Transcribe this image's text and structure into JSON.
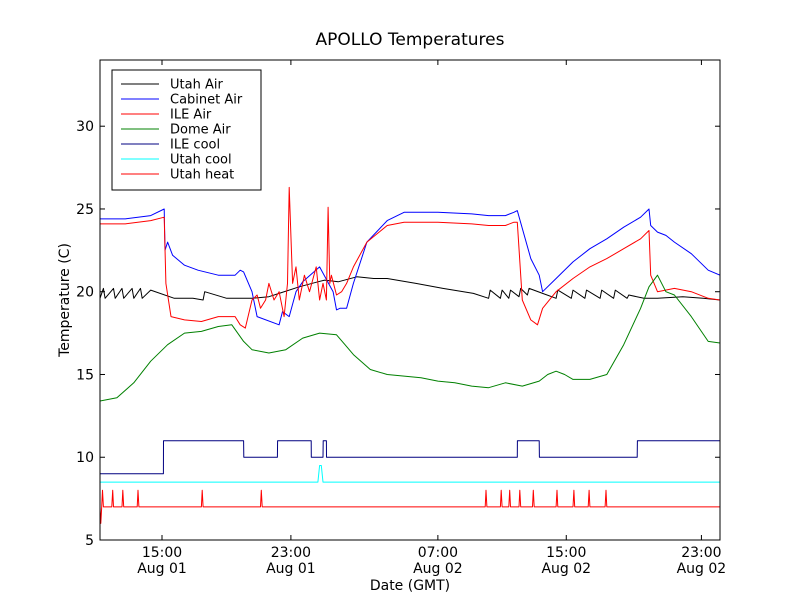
{
  "chart_data": {
    "type": "line",
    "title": "APOLLO Temperatures",
    "xlabel": "Date (GMT)",
    "ylabel": "Temperature (C)",
    "x_unit": "hours since Aug 01 11:00 GMT",
    "xlim": [
      0,
      36.7
    ],
    "ylim": [
      5,
      34
    ],
    "grid": false,
    "legend_position": "top-left",
    "xticks": [
      {
        "x": 3.67,
        "line1": "15:00",
        "line2": "Aug 01"
      },
      {
        "x": 11.3,
        "line1": "23:00",
        "line2": "Aug 01"
      },
      {
        "x": 20.0,
        "line1": "07:00",
        "line2": "Aug 02"
      },
      {
        "x": 27.6,
        "line1": "15:00",
        "line2": "Aug 02"
      },
      {
        "x": 35.6,
        "line1": "23:00",
        "line2": "Aug 02"
      }
    ],
    "yticks": [
      5,
      10,
      15,
      20,
      25,
      30
    ],
    "series": [
      {
        "name": "Utah Air",
        "color": "#000000",
        "x": [
          0,
          0.2,
          0.3,
          0.8,
          0.9,
          1.3,
          1.4,
          1.9,
          2.0,
          2.4,
          2.5,
          3.0,
          4.4,
          5.5,
          6.1,
          6.2,
          7.5,
          9.0,
          10.0,
          10.6,
          11.8,
          12.9,
          13.3,
          14.1,
          15.2,
          16.2,
          17.0,
          18.7,
          20.3,
          22.1,
          23.0,
          23.1,
          23.7,
          23.8,
          24.2,
          24.3,
          24.8,
          24.9,
          25.3,
          25.4,
          26.2,
          27.0,
          27.1,
          27.9,
          28.0,
          28.7,
          28.8,
          29.6,
          29.7,
          30.4,
          30.5,
          31.2,
          31.3,
          32.2,
          33.0,
          34.5,
          35.7,
          36.7
        ],
        "y": [
          19.6,
          20.2,
          19.6,
          20.2,
          19.6,
          20.2,
          19.6,
          20.2,
          19.6,
          20.2,
          19.6,
          20.1,
          19.6,
          19.6,
          19.5,
          20.0,
          19.6,
          19.6,
          19.7,
          19.9,
          20.3,
          20.6,
          20.7,
          20.6,
          20.9,
          20.8,
          20.8,
          20.5,
          20.2,
          19.9,
          19.6,
          20.1,
          19.6,
          20.1,
          19.6,
          20.1,
          19.7,
          20.2,
          19.8,
          20.2,
          19.9,
          19.6,
          20.1,
          19.6,
          20.1,
          19.6,
          20.1,
          19.6,
          20.1,
          19.6,
          20.1,
          19.6,
          19.8,
          19.6,
          19.6,
          19.7,
          19.6,
          19.5
        ]
      },
      {
        "name": "Cabinet Air",
        "color": "#0000ff",
        "x": [
          0,
          1.5,
          3.0,
          3.8,
          3.85,
          4.0,
          4.3,
          5.0,
          5.8,
          7.0,
          8.0,
          8.3,
          8.5,
          9.0,
          9.3,
          10.6,
          10.8,
          11.2,
          11.6,
          12.0,
          13.0,
          13.8,
          14.0,
          14.2,
          14.6,
          15.0,
          15.8,
          17.0,
          18.0,
          20.0,
          22.0,
          23.0,
          24.0,
          24.5,
          24.7,
          25.5,
          26.0,
          26.2,
          27.0,
          28.0,
          29.0,
          30.0,
          31.0,
          32.0,
          32.5,
          32.6,
          33.0,
          33.5,
          34.0,
          35.0,
          36.0,
          36.7
        ],
        "y": [
          24.4,
          24.4,
          24.6,
          25.0,
          22.5,
          23.0,
          22.2,
          21.6,
          21.3,
          21.0,
          21.0,
          21.3,
          21.2,
          20.0,
          18.5,
          18.0,
          18.8,
          18.5,
          20.0,
          20.6,
          21.5,
          20.0,
          18.9,
          19.0,
          19.0,
          20.5,
          23.0,
          24.3,
          24.8,
          24.8,
          24.7,
          24.6,
          24.6,
          24.8,
          24.9,
          22.0,
          21.0,
          20.0,
          20.8,
          21.8,
          22.6,
          23.2,
          23.9,
          24.5,
          25.0,
          24.0,
          23.6,
          23.4,
          23.0,
          22.3,
          21.3,
          21.0
        ]
      },
      {
        "name": "ILE Air",
        "color": "#ff0000",
        "x": [
          0,
          1.5,
          3.0,
          3.8,
          3.9,
          4.2,
          5.0,
          6.0,
          7.0,
          8.0,
          8.3,
          8.6,
          9.0,
          9.3,
          9.5,
          9.8,
          10.0,
          10.3,
          10.6,
          10.9,
          11.1,
          11.2,
          11.4,
          11.6,
          11.8,
          12.1,
          12.4,
          12.8,
          13.0,
          13.2,
          13.4,
          13.5,
          13.6,
          13.7,
          14.0,
          14.3,
          14.6,
          15.0,
          15.8,
          17.0,
          18.0,
          20.0,
          22.0,
          23.0,
          24.0,
          24.5,
          24.7,
          25.0,
          25.5,
          25.9,
          26.2,
          27.0,
          28.0,
          29.0,
          30.0,
          31.0,
          32.0,
          32.5,
          32.6,
          33.0,
          34.0,
          35.0,
          36.0,
          36.7
        ],
        "y": [
          24.1,
          24.1,
          24.3,
          24.5,
          20.5,
          18.5,
          18.3,
          18.2,
          18.5,
          18.5,
          18.0,
          17.8,
          19.5,
          19.8,
          19.0,
          19.5,
          20.5,
          19.5,
          20.0,
          18.5,
          20.5,
          26.3,
          20.5,
          21.5,
          19.5,
          21.0,
          20.0,
          21.5,
          19.5,
          20.5,
          19.5,
          25.1,
          20.5,
          21.0,
          19.8,
          20.0,
          20.5,
          21.5,
          23.0,
          24.0,
          24.2,
          24.2,
          24.1,
          24.0,
          24.0,
          24.2,
          24.2,
          19.5,
          18.3,
          18.0,
          19.0,
          20.0,
          20.8,
          21.5,
          22.0,
          22.6,
          23.2,
          23.7,
          21.0,
          20.0,
          20.2,
          20.0,
          19.6,
          19.5
        ]
      },
      {
        "name": "Dome Air",
        "color": "#008000",
        "x": [
          0,
          1.0,
          2.0,
          3.0,
          4.0,
          5.0,
          6.0,
          7.0,
          7.8,
          8.5,
          9.0,
          10.0,
          11.0,
          12.0,
          13.0,
          14.0,
          14.5,
          15.0,
          16.0,
          17.0,
          18.0,
          19.0,
          20.0,
          21.0,
          22.0,
          23.0,
          24.0,
          25.0,
          26.0,
          26.5,
          27.0,
          27.5,
          28.0,
          29.0,
          30.0,
          31.0,
          32.0,
          32.5,
          33.0,
          33.5,
          34.0,
          35.0,
          36.0,
          36.7
        ],
        "y": [
          13.4,
          13.6,
          14.5,
          15.8,
          16.8,
          17.5,
          17.6,
          17.9,
          18.0,
          17.0,
          16.5,
          16.3,
          16.5,
          17.2,
          17.5,
          17.4,
          16.8,
          16.2,
          15.3,
          15.0,
          14.9,
          14.8,
          14.6,
          14.5,
          14.3,
          14.2,
          14.5,
          14.3,
          14.6,
          15.0,
          15.2,
          15.0,
          14.7,
          14.7,
          15.0,
          16.8,
          19.0,
          20.3,
          21.0,
          20.0,
          19.8,
          18.5,
          17.0,
          16.9
        ]
      },
      {
        "name": "ILE cool",
        "color": "#000080",
        "x": [
          0,
          3.75,
          3.76,
          8.5,
          8.51,
          10.5,
          10.51,
          12.5,
          12.51,
          13.2,
          13.21,
          13.4,
          13.41,
          24.7,
          24.71,
          26.0,
          26.01,
          31.8,
          31.81,
          36.7
        ],
        "y": [
          9,
          9,
          11,
          11,
          10,
          10,
          11,
          11,
          10,
          10,
          11,
          11,
          10,
          10,
          11,
          11,
          10,
          10,
          11,
          11
        ]
      },
      {
        "name": "Utah cool",
        "color": "#00ffff",
        "x": [
          0,
          12.9,
          13.0,
          13.1,
          13.2,
          36.7
        ],
        "y": [
          8.5,
          8.5,
          9.5,
          9.5,
          8.5,
          8.5
        ]
      },
      {
        "name": "Utah heat",
        "color": "#ff0000",
        "x": [
          0,
          0.05,
          0.1,
          0.15,
          0.2,
          0.7,
          0.75,
          0.8,
          1.3,
          1.35,
          1.4,
          2.2,
          2.25,
          2.3,
          6.0,
          6.05,
          6.1,
          9.5,
          9.55,
          9.6,
          22.8,
          22.85,
          22.9,
          23.7,
          23.75,
          23.8,
          24.2,
          24.25,
          24.3,
          24.8,
          24.85,
          24.9,
          25.6,
          25.65,
          25.7,
          27.0,
          27.05,
          27.1,
          28.0,
          28.05,
          28.1,
          28.9,
          28.95,
          29.0,
          29.9,
          29.95,
          30.0,
          36.7
        ],
        "y": [
          7,
          6,
          7,
          8,
          7,
          7,
          8,
          7,
          7,
          8,
          7,
          7,
          8,
          7,
          7,
          8,
          7,
          7,
          8,
          7,
          7,
          8,
          7,
          7,
          8,
          7,
          7,
          8,
          7,
          7,
          8,
          7,
          7,
          8,
          7,
          7,
          8,
          7,
          7,
          8,
          7,
          7,
          8,
          7,
          7,
          8,
          7,
          7
        ]
      }
    ]
  }
}
